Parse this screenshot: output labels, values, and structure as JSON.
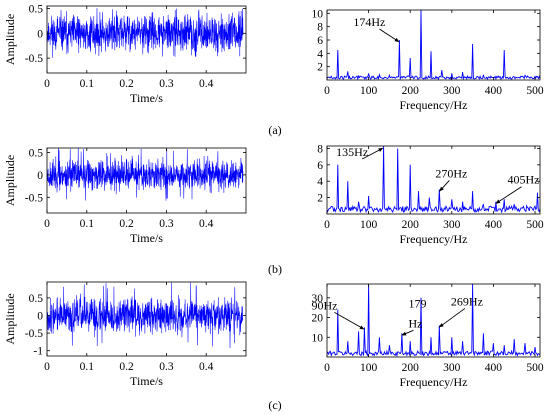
{
  "figure": {
    "panel_labels": [
      "(a)",
      "(b)",
      "(c)"
    ]
  },
  "colors": {
    "signal": "#0000ff",
    "axis": "#000000",
    "background": "#ffffff"
  },
  "chart_data": [
    {
      "id": "a-time",
      "type": "line",
      "xlabel": "Time/s",
      "ylabel": "Amplitude",
      "xlim": [
        0,
        0.5
      ],
      "ylim": [
        -0.8,
        0.55
      ],
      "xticks": [
        "0",
        "0.1",
        "0.2",
        "0.3",
        "0.4"
      ],
      "xtick_values": [
        0,
        0.1,
        0.2,
        0.3,
        0.4
      ],
      "yticks": [
        "0.5",
        "0",
        "-0.5"
      ],
      "ytick_values": [
        0.5,
        0,
        -0.5
      ],
      "series": [
        {
          "signal": "noise",
          "amplitude_typical": 0.3,
          "amplitude_peak": 0.5,
          "samples": 1024,
          "seed": 11
        }
      ]
    },
    {
      "id": "a-freq",
      "type": "line",
      "xlabel": "Frequency/Hz",
      "ylabel": "",
      "xlim": [
        0,
        512
      ],
      "ylim": [
        0,
        10.5
      ],
      "xticks": [
        "0",
        "100",
        "200",
        "300",
        "400",
        "500"
      ],
      "xtick_values": [
        0,
        100,
        200,
        300,
        400,
        500
      ],
      "yticks": [
        "10",
        "8",
        "6",
        "4",
        "2"
      ],
      "ytick_values": [
        10,
        8,
        6,
        4,
        2
      ],
      "series": [
        {
          "signal": "spectrum",
          "baseline": 0.5,
          "peaks": [
            [
              25,
              4.5
            ],
            [
              50,
              1.3
            ],
            [
              75,
              0.6
            ],
            [
              100,
              1.0
            ],
            [
              125,
              0.8
            ],
            [
              150,
              0.7
            ],
            [
              174,
              6.0
            ],
            [
              200,
              3.3
            ],
            [
              225,
              10.5
            ],
            [
              250,
              4.3
            ],
            [
              275,
              1.5
            ],
            [
              300,
              1.0
            ],
            [
              325,
              1.2
            ],
            [
              350,
              5.4
            ],
            [
              375,
              0.8
            ],
            [
              425,
              4.5
            ],
            [
              475,
              0.7
            ]
          ]
        }
      ],
      "annotations": [
        {
          "text": "174Hz",
          "x": 174,
          "y": 6.0
        }
      ]
    },
    {
      "id": "b-time",
      "type": "line",
      "xlabel": "Time/s",
      "ylabel": "Amplitude",
      "xlim": [
        0,
        0.5
      ],
      "ylim": [
        -0.85,
        0.6
      ],
      "xticks": [
        "0",
        "0.1",
        "0.2",
        "0.3",
        "0.4"
      ],
      "xtick_values": [
        0,
        0.1,
        0.2,
        0.3,
        0.4
      ],
      "yticks": [
        "0.5",
        "0",
        "-0.5"
      ],
      "ytick_values": [
        0.5,
        0,
        -0.5
      ],
      "series": [
        {
          "signal": "noise",
          "amplitude_typical": 0.28,
          "amplitude_peak": 0.6,
          "samples": 1024,
          "seed": 23
        }
      ]
    },
    {
      "id": "b-freq",
      "type": "line",
      "xlabel": "Frequency/Hz",
      "ylabel": "",
      "xlim": [
        0,
        512
      ],
      "ylim": [
        0,
        8.3
      ],
      "xticks": [
        "0",
        "100",
        "200",
        "300",
        "400",
        "500"
      ],
      "xtick_values": [
        0,
        100,
        200,
        300,
        400,
        500
      ],
      "yticks": [
        "8",
        "6",
        "4",
        "2"
      ],
      "ytick_values": [
        8,
        6,
        4,
        2
      ],
      "series": [
        {
          "signal": "spectrum",
          "baseline": 0.8,
          "peaks": [
            [
              25,
              6.0
            ],
            [
              50,
              4.0
            ],
            [
              75,
              1.5
            ],
            [
              100,
              2.2
            ],
            [
              135,
              8.3
            ],
            [
              170,
              8.0
            ],
            [
              200,
              6.0
            ],
            [
              220,
              2.8
            ],
            [
              245,
              2.0
            ],
            [
              270,
              3.0
            ],
            [
              300,
              1.8
            ],
            [
              325,
              1.5
            ],
            [
              350,
              2.8
            ],
            [
              375,
              1.2
            ],
            [
              405,
              1.5
            ],
            [
              425,
              1.8
            ],
            [
              450,
              1.2
            ],
            [
              480,
              1.0
            ],
            [
              505,
              2.6
            ]
          ]
        }
      ],
      "annotations": [
        {
          "text": "135Hz",
          "x": 135,
          "y": 8.3
        },
        {
          "text": "270Hz",
          "x": 270,
          "y": 3.0
        },
        {
          "text": "405Hz",
          "x": 405,
          "y": 1.5
        }
      ]
    },
    {
      "id": "c-time",
      "type": "line",
      "xlabel": "Time/s",
      "ylabel": "Amplitude",
      "xlim": [
        0,
        0.5
      ],
      "ylim": [
        -1.15,
        0.95
      ],
      "xticks": [
        "0",
        "0.1",
        "0.2",
        "0.3",
        "0.4"
      ],
      "xtick_values": [
        0,
        0.1,
        0.2,
        0.3,
        0.4
      ],
      "yticks": [
        "0.5",
        "0",
        "-0.5",
        "-1"
      ],
      "ytick_values": [
        0.5,
        0,
        -0.5,
        -1
      ],
      "series": [
        {
          "signal": "noise",
          "amplitude_typical": 0.4,
          "amplitude_peak": 0.95,
          "samples": 1024,
          "seed": 37
        }
      ]
    },
    {
      "id": "c-freq",
      "type": "line",
      "xlabel": "Frequency/Hz",
      "ylabel": "",
      "xlim": [
        0,
        512
      ],
      "ylim": [
        0,
        37
      ],
      "xticks": [
        "0",
        "100",
        "200",
        "300",
        "400",
        "500"
      ],
      "xtick_values": [
        0,
        100,
        200,
        300,
        400,
        500
      ],
      "yticks": [
        "30",
        "20",
        "10"
      ],
      "ytick_values": [
        30,
        20,
        10
      ],
      "series": [
        {
          "signal": "spectrum",
          "baseline": 2.5,
          "peaks": [
            [
              25,
              24.0
            ],
            [
              50,
              8.0
            ],
            [
              75,
              13.0
            ],
            [
              90,
              15.0
            ],
            [
              100,
              37.0
            ],
            [
              125,
              10.0
            ],
            [
              150,
              6.0
            ],
            [
              179,
              12.0
            ],
            [
              200,
              8.0
            ],
            [
              225,
              30.0
            ],
            [
              250,
              10.0
            ],
            [
              269,
              16.0
            ],
            [
              300,
              10.0
            ],
            [
              325,
              8.0
            ],
            [
              350,
              37.0
            ],
            [
              375,
              12.0
            ],
            [
              400,
              7.0
            ],
            [
              425,
              6.0
            ],
            [
              450,
              9.0
            ],
            [
              475,
              7.0
            ],
            [
              500,
              5.0
            ]
          ]
        }
      ],
      "annotations": [
        {
          "text": "90Hz",
          "x": 90,
          "y": 15.0
        },
        {
          "text": "179",
          "x": 179,
          "y": 12.0
        },
        {
          "text": "Hz",
          "x": 179,
          "y": 12.0
        },
        {
          "text": "269Hz",
          "x": 269,
          "y": 16.0
        }
      ]
    }
  ]
}
